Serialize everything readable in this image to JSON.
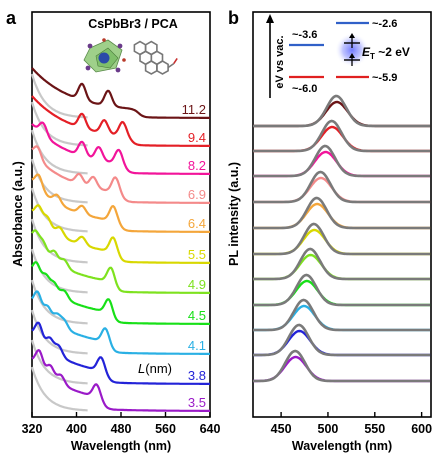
{
  "panel_a": {
    "label": "a",
    "title": "CsPbBr3 / PCA",
    "xlabel": "Wavelength (nm)",
    "ylabel": "Absorbance (a.u.)",
    "x_ticks": [
      "320",
      "400",
      "480",
      "560",
      "640"
    ],
    "legend_header": "L(nm)"
  },
  "panel_b": {
    "label": "b",
    "xlabel": "Wavelength (nm)",
    "ylabel": "PL intensity (a.u.)",
    "x_ticks": [
      "450",
      "500",
      "550",
      "600"
    ],
    "inset": {
      "axis_label": "eV vs vac.",
      "left_lumo": "~-3.6",
      "left_homo": "~-6.0",
      "right_lumo": "~-2.6",
      "right_homo": "~-5.9",
      "triplet_label": "E",
      "triplet_sub": "T",
      "triplet_value": " ~2 eV"
    }
  },
  "chart_data": [
    {
      "type": "line",
      "xlim": [
        320,
        640
      ],
      "xlabel": "Wavelength (nm)",
      "ylabel": "Absorbance (a.u.)",
      "series": [
        {
          "name": "11.2",
          "color": "#6b1416",
          "edge": 512,
          "excitons": [
            [
              410,
              16
            ],
            [
              457,
              15
            ]
          ]
        },
        {
          "name": "9.4",
          "color": "#e41f26",
          "edge": 499,
          "excitons": [
            [
              410,
              14
            ],
            [
              450,
              13
            ],
            [
              483,
              14
            ]
          ]
        },
        {
          "name": "8.2",
          "color": "#f2149a",
          "edge": 488,
          "excitons": [
            [
              340,
              12
            ],
            [
              410,
              14
            ],
            [
              440,
              13
            ],
            [
              476,
              14
            ]
          ]
        },
        {
          "name": "6.9",
          "color": "#f48a8a",
          "edge": 483,
          "excitons": [
            [
              330,
              12
            ],
            [
              405,
              10
            ],
            [
              430,
              11
            ],
            [
              470,
              15
            ]
          ]
        },
        {
          "name": "6.4",
          "color": "#f4a63b",
          "edge": 479,
          "excitons": [
            [
              332,
              14
            ],
            [
              365,
              8
            ],
            [
              410,
              8
            ],
            [
              466,
              15
            ]
          ]
        },
        {
          "name": "5.5",
          "color": "#d8d800",
          "edge": 476,
          "excitons": [
            [
              332,
              14
            ],
            [
              348,
              10
            ],
            [
              370,
              8
            ],
            [
              410,
              8
            ],
            [
              466,
              15
            ]
          ]
        },
        {
          "name": "4.9",
          "color": "#7ee21f",
          "edge": 470,
          "excitons": [
            [
              326,
              15
            ],
            [
              340,
              12
            ],
            [
              360,
              11
            ],
            [
              378,
              8
            ],
            [
              462,
              15
            ]
          ]
        },
        {
          "name": "4.5",
          "color": "#18e018",
          "edge": 466,
          "excitons": [
            [
              328,
              16
            ],
            [
              345,
              12
            ],
            [
              360,
              10
            ],
            [
              378,
              8
            ],
            [
              458,
              14
            ]
          ]
        },
        {
          "name": "4.1",
          "color": "#2ab0e4",
          "edge": 462,
          "excitons": [
            [
              330,
              18
            ],
            [
              348,
              12
            ],
            [
              365,
              10
            ],
            [
              378,
              8
            ],
            [
              452,
              14
            ]
          ]
        },
        {
          "name": "3.8",
          "color": "#2323d8",
          "edge": 456,
          "excitons": [
            [
              332,
              18
            ],
            [
              352,
              12
            ],
            [
              368,
              10
            ],
            [
              444,
              14
            ]
          ]
        },
        {
          "name": "3.5",
          "color": "#9a1ac8",
          "edge": 448,
          "excitons": [
            [
              333,
              18
            ],
            [
              353,
              12
            ],
            [
              372,
              9
            ],
            [
              436,
              13
            ]
          ]
        }
      ]
    },
    {
      "type": "line",
      "xlim": [
        420,
        610
      ],
      "xlabel": "Wavelength (nm)",
      "ylabel": "PL intensity (a.u.)",
      "series": [
        {
          "name": "11.2",
          "color": "#6b1416",
          "peak_nm": 509
        },
        {
          "name": "9.4",
          "color": "#e41f26",
          "peak_nm": 504
        },
        {
          "name": "8.2",
          "color": "#f2149a",
          "peak_nm": 497
        },
        {
          "name": "6.9",
          "color": "#f48a8a",
          "peak_nm": 492
        },
        {
          "name": "6.4",
          "color": "#f4a63b",
          "peak_nm": 488
        },
        {
          "name": "5.5",
          "color": "#d8d800",
          "peak_nm": 485
        },
        {
          "name": "4.9",
          "color": "#7ee21f",
          "peak_nm": 481
        },
        {
          "name": "4.5",
          "color": "#18e018",
          "peak_nm": 477
        },
        {
          "name": "4.1",
          "color": "#2ab0e4",
          "peak_nm": 474
        },
        {
          "name": "3.8",
          "color": "#2323d8",
          "peak_nm": 469
        },
        {
          "name": "3.5",
          "color": "#9a1ac8",
          "peak_nm": 465
        }
      ]
    }
  ]
}
